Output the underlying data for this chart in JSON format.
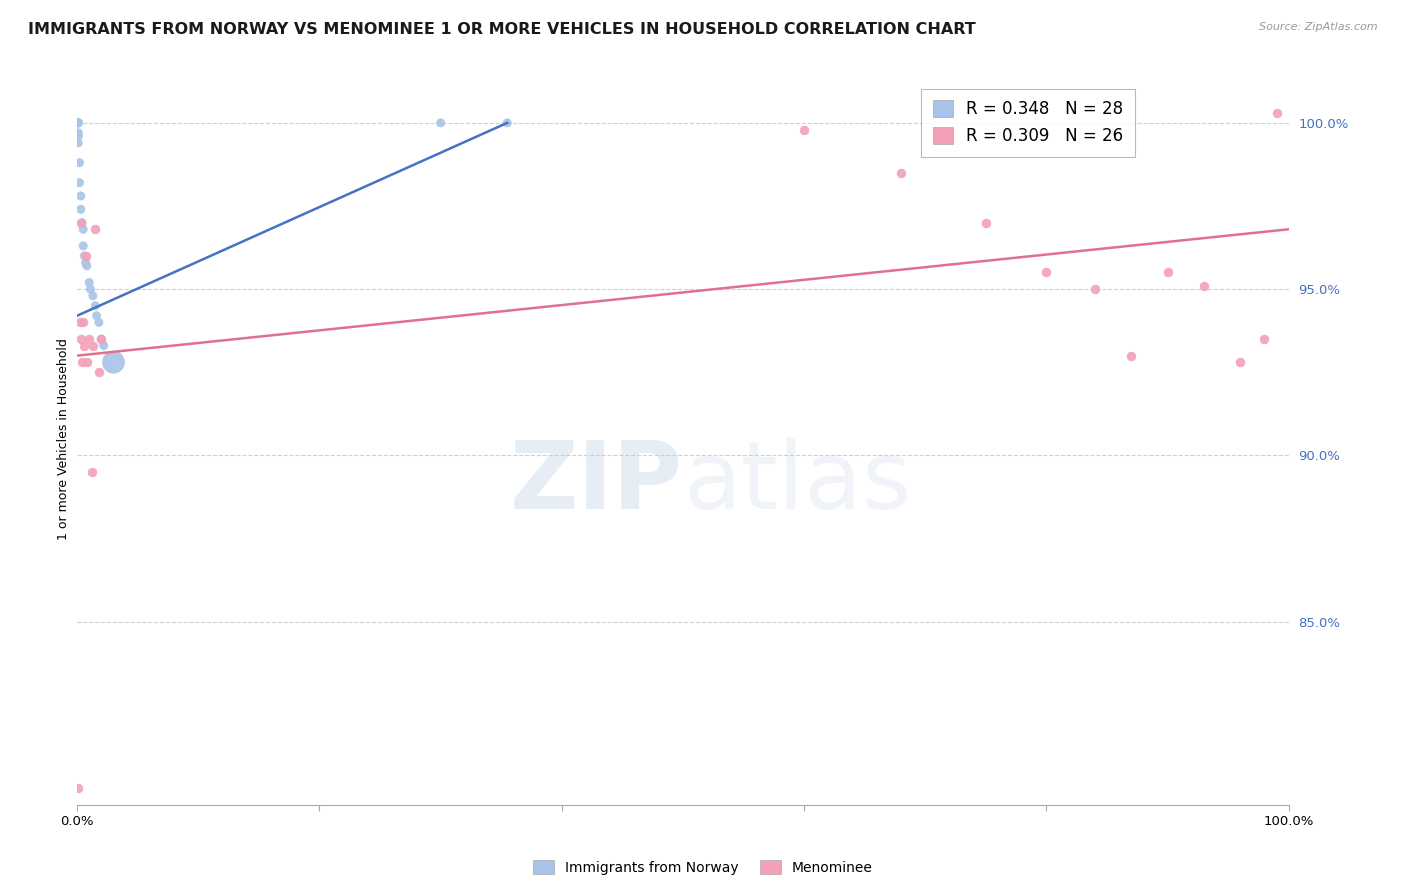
{
  "title": "IMMIGRANTS FROM NORWAY VS MENOMINEE 1 OR MORE VEHICLES IN HOUSEHOLD CORRELATION CHART",
  "source": "Source: ZipAtlas.com",
  "ylabel": "1 or more Vehicles in Household",
  "ytick_values": [
    0.85,
    0.9,
    0.95,
    1.0
  ],
  "xlim": [
    0.0,
    1.0
  ],
  "ylim": [
    0.795,
    1.015
  ],
  "legend_blue_R": "0.348",
  "legend_blue_N": "28",
  "legend_pink_R": "0.309",
  "legend_pink_N": "26",
  "legend_label_blue": "Immigrants from Norway",
  "legend_label_pink": "Menominee",
  "blue_color": "#a8c4e8",
  "pink_color": "#f4a0b8",
  "blue_line_color": "#4472c4",
  "pink_line_color": "#e07090",
  "blue_scatter_x": [
    0.001,
    0.001,
    0.001,
    0.001,
    0.001,
    0.001,
    0.001,
    0.002,
    0.002,
    0.003,
    0.003,
    0.004,
    0.005,
    0.005,
    0.006,
    0.007,
    0.008,
    0.01,
    0.011,
    0.013,
    0.015,
    0.016,
    0.018,
    0.02,
    0.022,
    0.03,
    0.3,
    0.355
  ],
  "blue_scatter_y": [
    1.0,
    1.0,
    1.0,
    1.0,
    0.997,
    0.996,
    0.994,
    0.988,
    0.982,
    0.978,
    0.974,
    0.97,
    0.968,
    0.963,
    0.96,
    0.958,
    0.957,
    0.952,
    0.95,
    0.948,
    0.945,
    0.942,
    0.94,
    0.935,
    0.933,
    0.928,
    1.0,
    1.0
  ],
  "blue_scatter_sizes": [
    35,
    35,
    35,
    35,
    35,
    35,
    35,
    35,
    35,
    35,
    35,
    35,
    35,
    35,
    35,
    35,
    35,
    35,
    35,
    35,
    35,
    35,
    35,
    35,
    35,
    250,
    35,
    35
  ],
  "pink_scatter_x": [
    0.001,
    0.002,
    0.003,
    0.003,
    0.004,
    0.005,
    0.006,
    0.007,
    0.008,
    0.01,
    0.012,
    0.013,
    0.015,
    0.018,
    0.02,
    0.6,
    0.68,
    0.75,
    0.8,
    0.84,
    0.87,
    0.9,
    0.93,
    0.96,
    0.98,
    0.99
  ],
  "pink_scatter_y": [
    0.8,
    0.94,
    0.935,
    0.97,
    0.928,
    0.94,
    0.933,
    0.96,
    0.928,
    0.935,
    0.895,
    0.933,
    0.968,
    0.925,
    0.935,
    0.998,
    0.985,
    0.97,
    0.955,
    0.95,
    0.93,
    0.955,
    0.951,
    0.928,
    0.935,
    1.003
  ],
  "blue_line_x": [
    0.0,
    0.355
  ],
  "blue_line_y": [
    0.942,
    1.0
  ],
  "pink_line_x": [
    0.0,
    1.0
  ],
  "pink_line_y": [
    0.93,
    0.968
  ],
  "watermark_zip": "ZIP",
  "watermark_atlas": "atlas",
  "background_color": "#ffffff",
  "grid_color": "#d0d0d0",
  "title_fontsize": 11.5,
  "axis_label_fontsize": 9,
  "tick_label_fontsize": 9.5
}
